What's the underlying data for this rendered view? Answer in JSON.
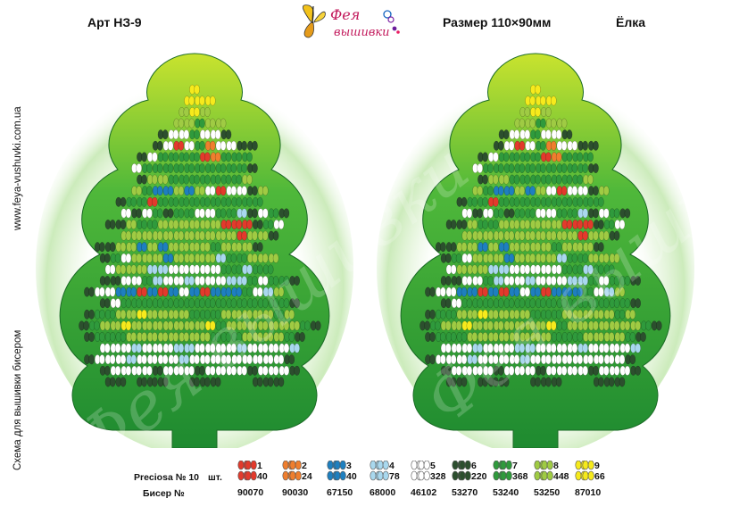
{
  "header": {
    "art": "Арт НЗ-9",
    "size": "Размер 110×90мм",
    "name": "Ёлка",
    "logo_top": "Фея",
    "logo_bottom": "вышивки"
  },
  "side": {
    "site": "www.feya-vushuvki.com.ua",
    "caption": "Схема для вышивки бисером"
  },
  "watermark": "Фея вышивки",
  "legend": {
    "brand_label": "Preciosa № 10",
    "count_label": "шт.",
    "code_label": "Бисер №",
    "entries": [
      {
        "num": "1",
        "count": "40",
        "code": "90070",
        "color": "#e23a2c"
      },
      {
        "num": "2",
        "count": "24",
        "code": "90030",
        "color": "#ef7e2e"
      },
      {
        "num": "3",
        "count": "40",
        "code": "67150",
        "color": "#1e7fbf"
      },
      {
        "num": "4",
        "count": "78",
        "code": "68000",
        "color": "#a9d8ee"
      },
      {
        "num": "5",
        "count": "328",
        "code": "46102",
        "color": "#ffffff"
      },
      {
        "num": "6",
        "count": "220",
        "code": "53270",
        "color": "#2c4f2e"
      },
      {
        "num": "7",
        "count": "368",
        "code": "53240",
        "color": "#2f9a3c"
      },
      {
        "num": "8",
        "count": "448",
        "code": "53250",
        "color": "#9fcb43"
      },
      {
        "num": "9",
        "count": "66",
        "code": "87010",
        "color": "#f6ea1c"
      }
    ]
  }
}
